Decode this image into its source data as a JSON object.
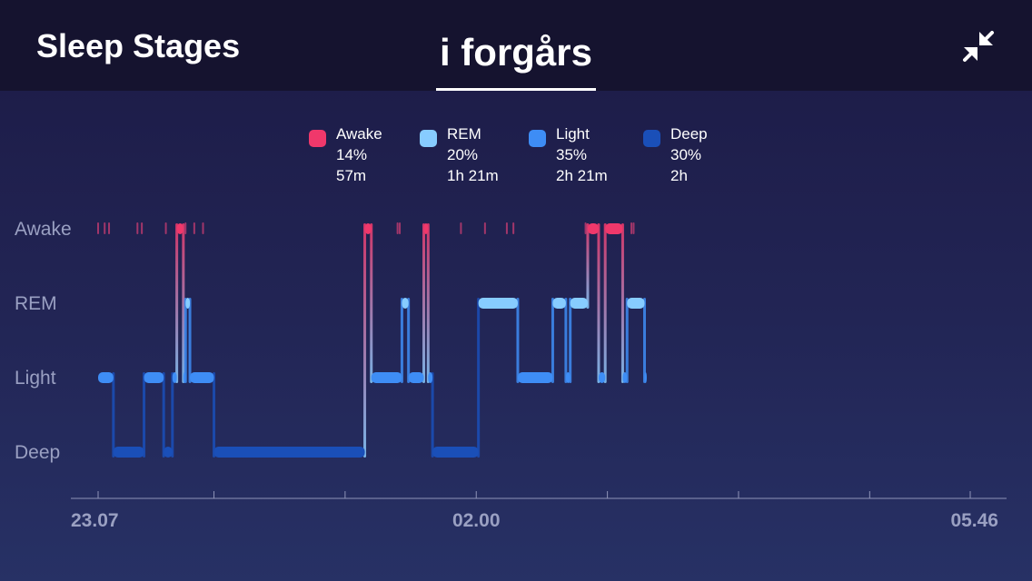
{
  "header": {
    "title": "Sleep Stages",
    "current_tab": "i forgårs",
    "collapse_icon": "collapse-arrows-icon"
  },
  "legend": [
    {
      "label": "Awake",
      "percent": "14%",
      "duration": "57m",
      "color": "#f0386b"
    },
    {
      "label": "REM",
      "percent": "20%",
      "duration": "1h 21m",
      "color": "#87ccff"
    },
    {
      "label": "Light",
      "percent": "35%",
      "duration": "2h 21m",
      "color": "#3e8df5"
    },
    {
      "label": "Deep",
      "percent": "30%",
      "duration": "2h",
      "color": "#1a4fb8"
    }
  ],
  "chart_data": {
    "type": "step-area",
    "title": "",
    "xlabel": "",
    "ylabel": "",
    "y_categories": [
      "Awake",
      "REM",
      "Light",
      "Deep"
    ],
    "x_tick_labels": [
      "23.07",
      "02.00",
      "05.46"
    ],
    "x_range": [
      "23.07",
      "05.46"
    ],
    "grid": false,
    "colors": {
      "Awake": "#f0386b",
      "REM": "#87ccff",
      "Light": "#3e8df5",
      "Deep": "#1a4fb8"
    },
    "segments": [
      {
        "stage": "Light",
        "start": "23:07",
        "end": "23:14"
      },
      {
        "stage": "Deep",
        "start": "23:14",
        "end": "23:28"
      },
      {
        "stage": "Light",
        "start": "23:28",
        "end": "23:37"
      },
      {
        "stage": "Deep",
        "start": "23:37",
        "end": "23:41"
      },
      {
        "stage": "Light",
        "start": "23:41",
        "end": "23:43"
      },
      {
        "stage": "Awake",
        "start": "23:43",
        "end": "23:46"
      },
      {
        "stage": "Light",
        "start": "23:46",
        "end": "23:47"
      },
      {
        "stage": "REM",
        "start": "23:47",
        "end": "23:49"
      },
      {
        "stage": "Light",
        "start": "23:49",
        "end": "24:00"
      },
      {
        "stage": "Deep",
        "start": "24:00",
        "end": "01:09"
      },
      {
        "stage": "Awake",
        "start": "01:09",
        "end": "01:12"
      },
      {
        "stage": "Light",
        "start": "01:12",
        "end": "01:26"
      },
      {
        "stage": "REM",
        "start": "01:26",
        "end": "01:29"
      },
      {
        "stage": "Light",
        "start": "01:29",
        "end": "01:36"
      },
      {
        "stage": "Awake",
        "start": "01:36",
        "end": "01:38"
      },
      {
        "stage": "Light",
        "start": "01:38",
        "end": "01:40"
      },
      {
        "stage": "Deep",
        "start": "01:40",
        "end": "02:01"
      },
      {
        "stage": "REM",
        "start": "02:01",
        "end": "02:19"
      },
      {
        "stage": "Light",
        "start": "02:19",
        "end": "02:35"
      },
      {
        "stage": "REM",
        "start": "02:35",
        "end": "02:41"
      },
      {
        "stage": "Light",
        "start": "02:41",
        "end": "02:43"
      },
      {
        "stage": "REM",
        "start": "02:43",
        "end": "02:51"
      },
      {
        "stage": "Awake",
        "start": "02:51",
        "end": "02:56"
      },
      {
        "stage": "Light",
        "start": "02:56",
        "end": "02:59"
      },
      {
        "stage": "Awake",
        "start": "02:59",
        "end": "03:07"
      },
      {
        "stage": "Light",
        "start": "03:07",
        "end": "03:09"
      },
      {
        "stage": "REM",
        "start": "03:09",
        "end": "03:17"
      },
      {
        "stage": "Light",
        "start": "03:17",
        "end": "03:18"
      }
    ],
    "brief_awakenings": [
      "23:07",
      "23:10",
      "23:12",
      "23:25",
      "23:27",
      "23:38",
      "23:47",
      "23:51",
      "23:55",
      "01:24",
      "01:25",
      "01:53",
      "02:04",
      "02:14",
      "02:17",
      "02:50",
      "03:11",
      "03:12"
    ]
  }
}
